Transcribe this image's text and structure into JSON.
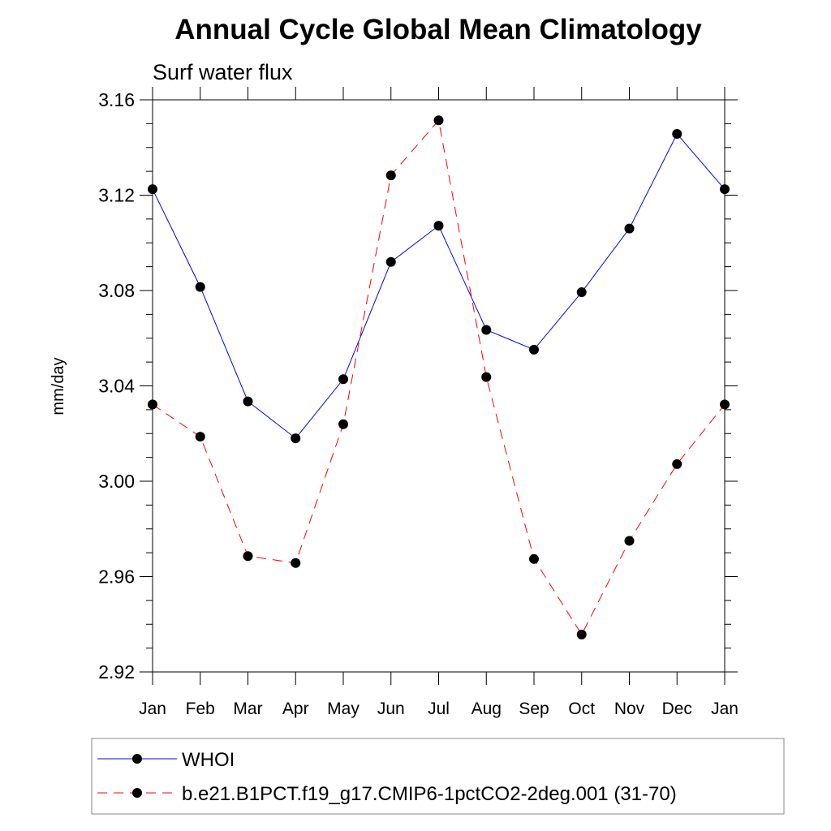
{
  "chart_data": {
    "type": "line",
    "title": "Annual Cycle Global Mean Climatology",
    "subtitle": "Surf water flux",
    "xlabel": "",
    "ylabel": "mm/day",
    "categories": [
      "Jan",
      "Feb",
      "Mar",
      "Apr",
      "May",
      "Jun",
      "Jul",
      "Aug",
      "Sep",
      "Oct",
      "Nov",
      "Dec",
      "Jan"
    ],
    "ylim": [
      2.92,
      3.16
    ],
    "yticks": [
      "2.92",
      "2.96",
      "3.00",
      "3.04",
      "3.08",
      "3.12",
      "3.16"
    ],
    "grid": false,
    "legend_position": "bottom",
    "series": [
      {
        "name": "WHOI",
        "color": "#0000ff",
        "line_style": "solid",
        "marker": "circle",
        "values": [
          3.1225,
          3.0815,
          3.0335,
          3.018,
          3.0428,
          3.092,
          3.1072,
          3.0635,
          3.0552,
          3.0793,
          3.106,
          3.1457,
          3.1225
        ]
      },
      {
        "name": "b.e21.B1PCT.f19_g17.CMIP6-1pctCO2-2deg.001 (31-70)",
        "color": "#ff0000",
        "line_style": "dashed",
        "marker": "circle",
        "values": [
          3.0322,
          3.0187,
          2.9686,
          2.9657,
          3.0239,
          3.1283,
          3.1514,
          3.0437,
          2.9674,
          2.9357,
          2.975,
          3.0072,
          3.0322
        ]
      }
    ]
  }
}
